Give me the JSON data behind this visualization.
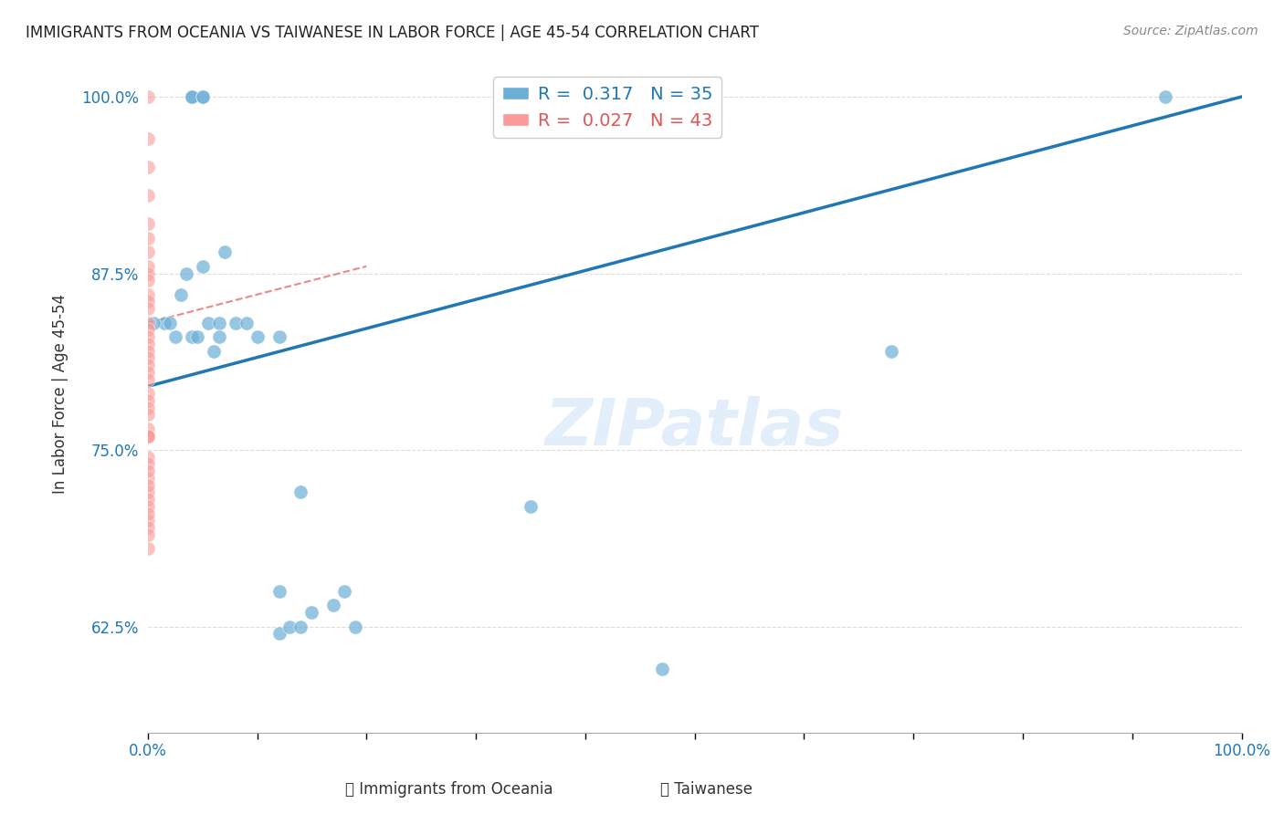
{
  "title": "IMMIGRANTS FROM OCEANIA VS TAIWANESE IN LABOR FORCE | AGE 45-54 CORRELATION CHART",
  "source": "Source: ZipAtlas.com",
  "xlabel": "",
  "ylabel": "In Labor Force | Age 45-54",
  "watermark": "ZIPatlas",
  "xlim": [
    0.0,
    1.0
  ],
  "ylim": [
    0.55,
    1.03
  ],
  "x_ticks": [
    0.0,
    0.1,
    0.2,
    0.3,
    0.4,
    0.5,
    0.6,
    0.7,
    0.8,
    0.9,
    1.0
  ],
  "x_tick_labels": [
    "0.0%",
    "",
    "",
    "",
    "",
    "",
    "",
    "",
    "",
    "",
    "100.0%"
  ],
  "y_tick_vals": [
    0.625,
    0.75,
    0.875,
    1.0
  ],
  "y_tick_labels": [
    "62.5%",
    "75.0%",
    "87.5%",
    "100.0%"
  ],
  "blue_R": 0.317,
  "blue_N": 35,
  "pink_R": 0.027,
  "pink_N": 43,
  "blue_color": "#6baed6",
  "pink_color": "#fb9a99",
  "blue_line_color": "#1f78b4",
  "pink_line_color": "#e88a8a",
  "legend_blue_label": "Immigrants from Oceania",
  "legend_pink_label": "Taiwanese",
  "blue_scatter_x": [
    0.04,
    0.04,
    0.05,
    0.05,
    0.015,
    0.02,
    0.025,
    0.03,
    0.035,
    0.04,
    0.045,
    0.05,
    0.055,
    0.06,
    0.065,
    0.065,
    0.07,
    0.08,
    0.09,
    0.1,
    0.12,
    0.14,
    0.17,
    0.18,
    0.19,
    0.35,
    0.12,
    0.15,
    0.12,
    0.13,
    0.14,
    0.47,
    0.68,
    0.93,
    0.005
  ],
  "blue_scatter_y": [
    1.0,
    1.0,
    1.0,
    1.0,
    0.84,
    0.84,
    0.83,
    0.86,
    0.875,
    0.83,
    0.83,
    0.88,
    0.84,
    0.82,
    0.84,
    0.83,
    0.89,
    0.84,
    0.84,
    0.83,
    0.83,
    0.72,
    0.64,
    0.65,
    0.625,
    0.71,
    0.65,
    0.635,
    0.62,
    0.625,
    0.625,
    0.595,
    0.82,
    1.0,
    0.84
  ],
  "pink_scatter_x": [
    0.0,
    0.0,
    0.0,
    0.0,
    0.0,
    0.0,
    0.0,
    0.0,
    0.0,
    0.0,
    0.0,
    0.0,
    0.0,
    0.0,
    0.0,
    0.0,
    0.0,
    0.0,
    0.0,
    0.0,
    0.0,
    0.0,
    0.0,
    0.0,
    0.0,
    0.0,
    0.0,
    0.0,
    0.0,
    0.0,
    0.0,
    0.0,
    0.0,
    0.0,
    0.0,
    0.0,
    0.0,
    0.0,
    0.0,
    0.0,
    0.0,
    0.0,
    0.0
  ],
  "pink_scatter_y": [
    1.0,
    0.97,
    0.95,
    0.93,
    0.91,
    0.9,
    0.89,
    0.88,
    0.875,
    0.87,
    0.86,
    0.855,
    0.85,
    0.84,
    0.835,
    0.83,
    0.825,
    0.82,
    0.815,
    0.81,
    0.805,
    0.8,
    0.79,
    0.785,
    0.78,
    0.775,
    0.765,
    0.76,
    0.745,
    0.73,
    0.72,
    0.7,
    0.68,
    0.76,
    0.76,
    0.74,
    0.735,
    0.725,
    0.715,
    0.71,
    0.705,
    0.695,
    0.69
  ],
  "blue_line_x": [
    0.0,
    1.0
  ],
  "blue_line_y": [
    0.795,
    1.0
  ],
  "pink_line_x": [
    0.0,
    0.2
  ],
  "pink_line_y": [
    0.84,
    0.88
  ],
  "background_color": "#ffffff",
  "grid_color": "#dddddd"
}
